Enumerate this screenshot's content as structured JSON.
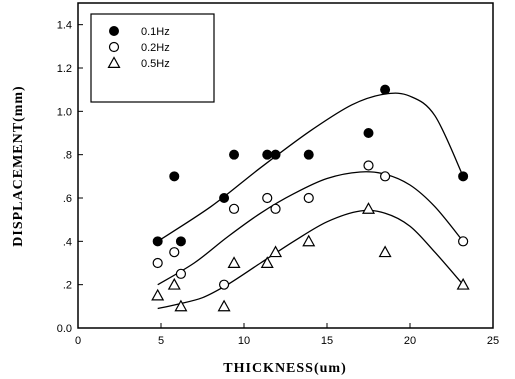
{
  "chart_data": {
    "type": "scatter",
    "xlabel": "THICKNESS(um)",
    "ylabel": "DISPLACEMENT(mm)",
    "xlim": [
      0,
      25
    ],
    "ylim": [
      0,
      1.5
    ],
    "xticks": [
      0,
      5,
      10,
      15,
      20,
      25
    ],
    "xtick_labels": [
      "0",
      "5",
      "10",
      "15",
      "20",
      "25"
    ],
    "yticks": [
      0,
      0.2,
      0.4,
      0.6,
      0.8,
      1.0,
      1.2,
      1.4
    ],
    "ytick_labels": [
      "0.0",
      ".2",
      ".4",
      ".6",
      ".8",
      "1.0",
      "1.2",
      "1.4"
    ],
    "grid": false,
    "legend_position": "top-left",
    "series": [
      {
        "name": "0.1Hz",
        "marker": "filled-circle",
        "color": "#000000",
        "points": [
          [
            4.8,
            0.4
          ],
          [
            5.8,
            0.7
          ],
          [
            6.2,
            0.4
          ],
          [
            8.8,
            0.6
          ],
          [
            9.4,
            0.8
          ],
          [
            11.4,
            0.8
          ],
          [
            11.9,
            0.8
          ],
          [
            13.9,
            0.8
          ],
          [
            17.5,
            0.9
          ],
          [
            18.5,
            1.1
          ],
          [
            23.2,
            0.7
          ]
        ],
        "fit": [
          [
            4.8,
            0.4
          ],
          [
            8,
            0.56
          ],
          [
            11,
            0.74
          ],
          [
            14,
            0.91
          ],
          [
            16.5,
            1.03
          ],
          [
            18.5,
            1.08
          ],
          [
            20,
            1.07
          ],
          [
            21.5,
            0.98
          ],
          [
            23.2,
            0.7
          ]
        ]
      },
      {
        "name": "0.2Hz",
        "marker": "open-circle",
        "color": "#000000",
        "points": [
          [
            4.8,
            0.3
          ],
          [
            5.8,
            0.35
          ],
          [
            6.2,
            0.25
          ],
          [
            8.8,
            0.2
          ],
          [
            9.4,
            0.55
          ],
          [
            11.4,
            0.6
          ],
          [
            11.9,
            0.55
          ],
          [
            13.9,
            0.6
          ],
          [
            17.5,
            0.75
          ],
          [
            18.5,
            0.7
          ],
          [
            23.2,
            0.4
          ]
        ],
        "fit": [
          [
            4.8,
            0.2
          ],
          [
            7,
            0.3
          ],
          [
            9,
            0.42
          ],
          [
            11,
            0.53
          ],
          [
            13,
            0.62
          ],
          [
            15,
            0.69
          ],
          [
            17,
            0.72
          ],
          [
            18.5,
            0.71
          ],
          [
            20,
            0.66
          ],
          [
            21.5,
            0.56
          ],
          [
            23.2,
            0.4
          ]
        ]
      },
      {
        "name": "0.5Hz",
        "marker": "open-triangle",
        "color": "#000000",
        "points": [
          [
            4.8,
            0.15
          ],
          [
            5.8,
            0.2
          ],
          [
            6.2,
            0.1
          ],
          [
            8.8,
            0.1
          ],
          [
            9.4,
            0.3
          ],
          [
            11.4,
            0.3
          ],
          [
            11.9,
            0.35
          ],
          [
            13.9,
            0.4
          ],
          [
            17.5,
            0.55
          ],
          [
            18.5,
            0.35
          ],
          [
            23.2,
            0.2
          ]
        ],
        "fit": [
          [
            4.8,
            0.09
          ],
          [
            6,
            0.11
          ],
          [
            7.5,
            0.14
          ],
          [
            9,
            0.2
          ],
          [
            11,
            0.3
          ],
          [
            13,
            0.4
          ],
          [
            15,
            0.49
          ],
          [
            17,
            0.54
          ],
          [
            18.5,
            0.53
          ],
          [
            20,
            0.47
          ],
          [
            21.5,
            0.35
          ],
          [
            23.2,
            0.2
          ]
        ]
      }
    ]
  }
}
